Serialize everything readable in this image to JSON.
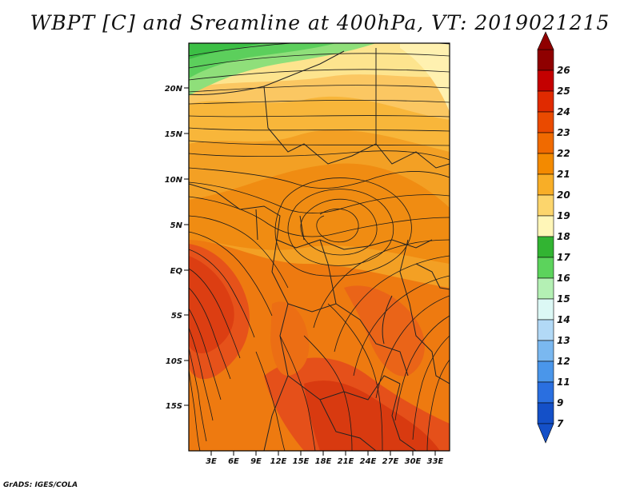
{
  "title": "WBPT [C] and Sreamline at 400hPa, VT: 2019021215",
  "credit": "GrADS: IGES/COLA",
  "map": {
    "lat_labels": [
      "20N",
      "15N",
      "10N",
      "5N",
      "EQ",
      "5S",
      "10S",
      "15S"
    ],
    "lon_labels": [
      "3E",
      "6E",
      "9E",
      "12E",
      "15E",
      "18E",
      "21E",
      "24E",
      "27E",
      "30E",
      "33E"
    ]
  },
  "colorbar": {
    "levels": [
      "26",
      "25",
      "24",
      "23",
      "22",
      "21",
      "20",
      "19",
      "18",
      "17",
      "16",
      "15",
      "14",
      "13",
      "12",
      "11",
      "9",
      "7"
    ],
    "colors": [
      "#8f0000",
      "#c40000",
      "#e02a00",
      "#ea4a00",
      "#f06a00",
      "#f38a00",
      "#f8ae27",
      "#fcd56c",
      "#fff6b8",
      "#32b432",
      "#5cd35c",
      "#b4f0b4",
      "#dcf8f5",
      "#b2d9f6",
      "#7ab8f0",
      "#4a96ea",
      "#2a6fe0",
      "#1450c8"
    ]
  }
}
